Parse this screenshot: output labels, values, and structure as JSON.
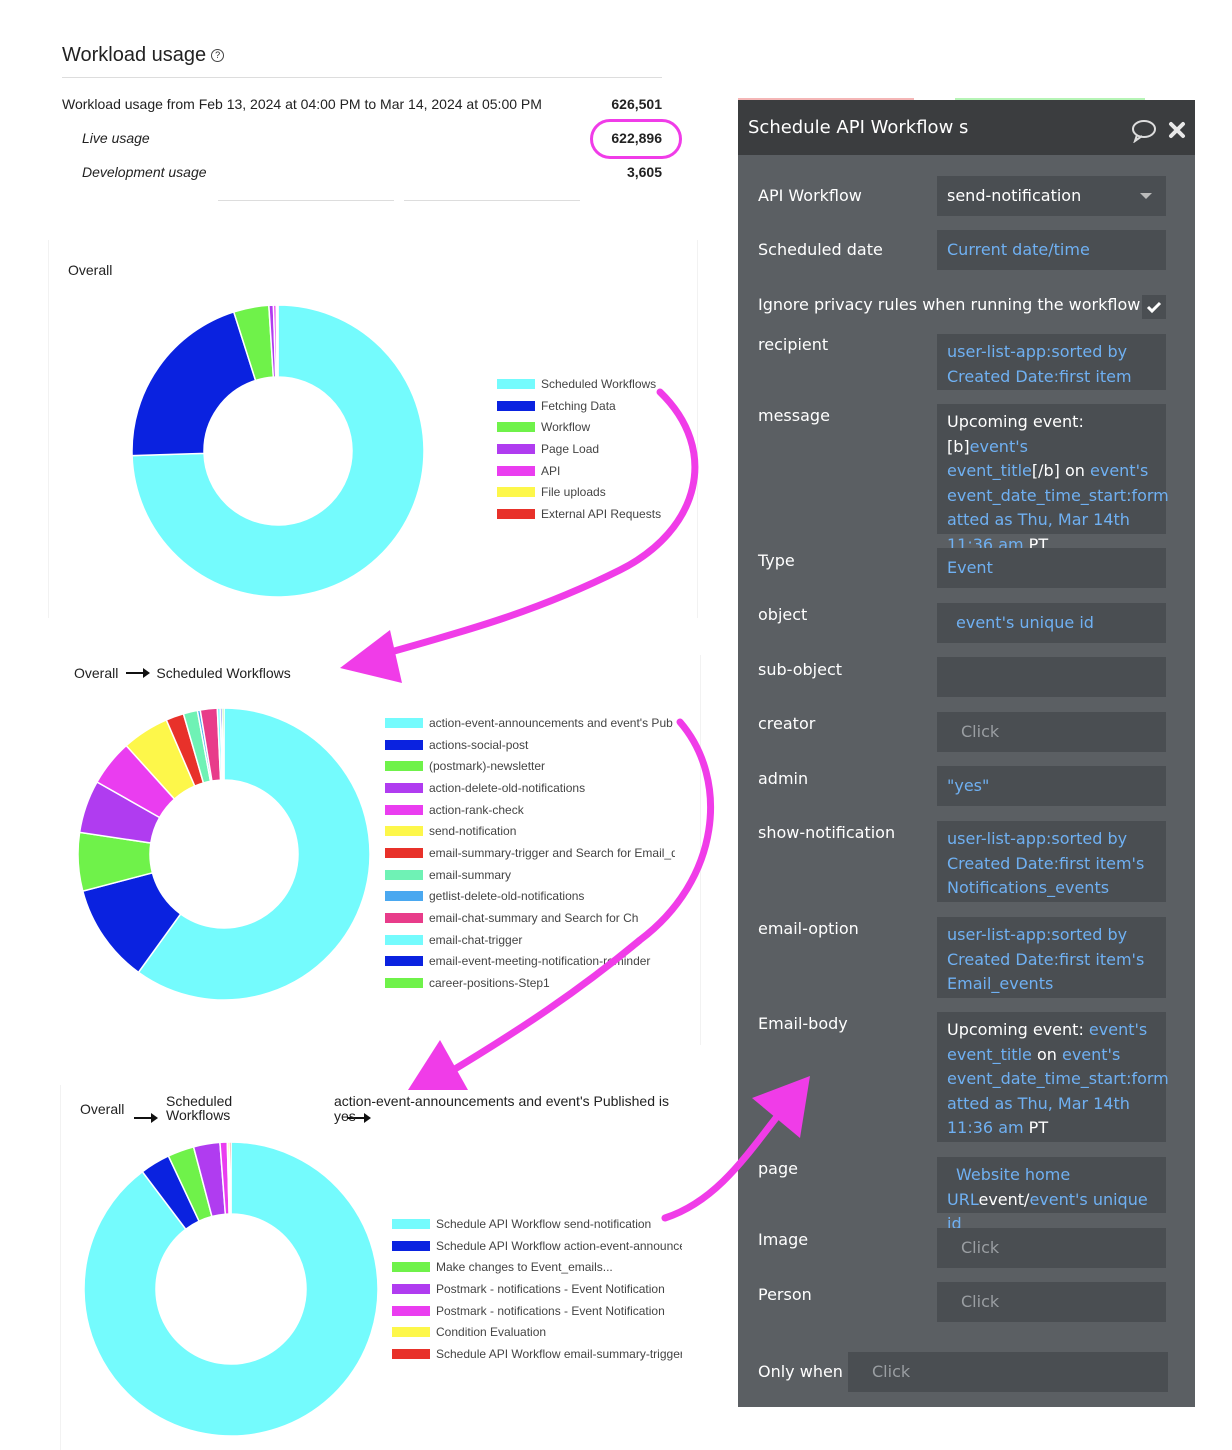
{
  "workload": {
    "title": "Workload usage",
    "help_icon": "question-icon",
    "range_text": "Workload usage from Feb 13, 2024 at 04:00 PM to Mar 14, 2024 at 05:00 PM",
    "total": "626,501",
    "live_label": "Live usage",
    "live_value": "622,896",
    "dev_label": "Development usage",
    "dev_value": "3,605"
  },
  "chart1": {
    "title": "Overall",
    "chart_data": {
      "type": "pie",
      "categories": [
        "Scheduled Workflows",
        "Fetching Data",
        "Workflow",
        "Page Load",
        "API",
        "File uploads",
        "External API Requests"
      ],
      "values": [
        74.5,
        20.6,
        3.9,
        0.5,
        0.3,
        0.1,
        0.1
      ],
      "colors": [
        "#74fbfd",
        "#0a22e0",
        "#6ff24a",
        "#b03cf0",
        "#ea3df0",
        "#fdf74a",
        "#e8312a"
      ]
    }
  },
  "chart2": {
    "crumb": [
      "Overall",
      "Scheduled Workflows"
    ],
    "chart_data": {
      "type": "pie",
      "categories": [
        "action-event-announcements and event's Pub",
        "actions-social-post",
        "(postmark)-newsletter",
        "action-delete-old-notifications",
        "action-rank-check",
        "send-notification",
        "email-summary-trigger and Search for Email_q",
        "email-summary",
        "getlist-delete-old-notifications",
        "email-chat-summary and Search for Ch",
        "email-chat-trigger",
        "email-event-meeting-notification-reminder",
        "career-positions-Step1"
      ],
      "values": [
        57.5,
        10.5,
        6.2,
        5.6,
        4.9,
        5.0,
        1.9,
        1.5,
        0.3,
        1.8,
        0.3,
        0.2,
        0.2
      ],
      "colors": [
        "#74fbfd",
        "#0a22e0",
        "#6ff24a",
        "#b03cf0",
        "#ea3df0",
        "#fdf74a",
        "#e8312a",
        "#6ff2b5",
        "#4aa8f0",
        "#e83c8a",
        "#74fbfd",
        "#0a22e0",
        "#6ff24a"
      ]
    }
  },
  "chart3": {
    "crumb": [
      "Overall",
      "Scheduled Workflows",
      "action-event-announcements and event's Published is yes"
    ],
    "chart_data": {
      "type": "pie",
      "categories": [
        "Schedule API Workflow send-notification",
        "Schedule API Workflow action-event-announce",
        "Make changes to Event_emails...",
        "Postmark - notifications - Event Notification",
        "Postmark - notifications - Event Notification",
        "Condition Evaluation",
        "Schedule API Workflow email-summary-trigger"
      ],
      "values": [
        89.7,
        3.3,
        2.9,
        2.9,
        0.8,
        0.2,
        0.2
      ],
      "colors": [
        "#74fbfd",
        "#0a22e0",
        "#6ff24a",
        "#b03cf0",
        "#ea3df0",
        "#fdf74a",
        "#e8312a"
      ]
    }
  },
  "panel": {
    "title": "Schedule API Workflow s",
    "comment_icon": "comment-icon",
    "close_icon": "close-icon",
    "api_workflow_label": "API Workflow",
    "api_workflow_value": "send-notification",
    "scheduled_date_label": "Scheduled date",
    "scheduled_date_value": "Current date/time",
    "ignore_privacy_label": "Ignore privacy rules when running the workflow",
    "recipient_label": "recipient",
    "recipient_l1": "user-list-app:sorted by",
    "recipient_l2": "Created Date:first item",
    "message_label": "message",
    "message": {
      "a": "Upcoming event: [b]",
      "b": "event's",
      "c": "event_title",
      "d": "[/b] on ",
      "e": "event's",
      "f": "event_date_time_start:form",
      "g": "atted as Thu, Mar 14th",
      "h": "11:36 am",
      "i": " PT"
    },
    "type_label": "Type",
    "type_value": "Event",
    "object_label": "object",
    "object_value": "event's unique id",
    "subobject_label": "sub-object",
    "creator_label": "creator",
    "creator_value": "Click",
    "admin_label": "admin",
    "admin_value": "\"yes\"",
    "show_label": "show-notification",
    "show_l1": "user-list-app:sorted by",
    "show_l2": "Created Date:first item's",
    "show_l3": "Notifications_events",
    "email_option_label": "email-option",
    "eo_l1": "user-list-app:sorted by",
    "eo_l2": "Created Date:first item's",
    "eo_l3": "Email_events",
    "email_body_label": "Email-body",
    "body": {
      "a": "Upcoming event: ",
      "b": "event's",
      "c": "event_title",
      "d": " on ",
      "e": "event's",
      "f": "event_date_time_start:form",
      "g": "atted as Thu, Mar 14th",
      "h": "11:36 am",
      "i": " PT"
    },
    "page_label": "page",
    "page_l1": "Website home",
    "page_l2a": "URL",
    "page_l2b": "event/",
    "page_l2c": "event's unique id",
    "image_label": "Image",
    "image_value": "Click",
    "person_label": "Person",
    "person_value": "Click",
    "only_when_label": "Only when",
    "only_when_value": "Click"
  },
  "colors": {
    "annotation": "#f03ce8",
    "panel_bg": "#5b5f63",
    "field_bg": "#4a4e52",
    "dynamic_text": "#6fb0f2"
  }
}
